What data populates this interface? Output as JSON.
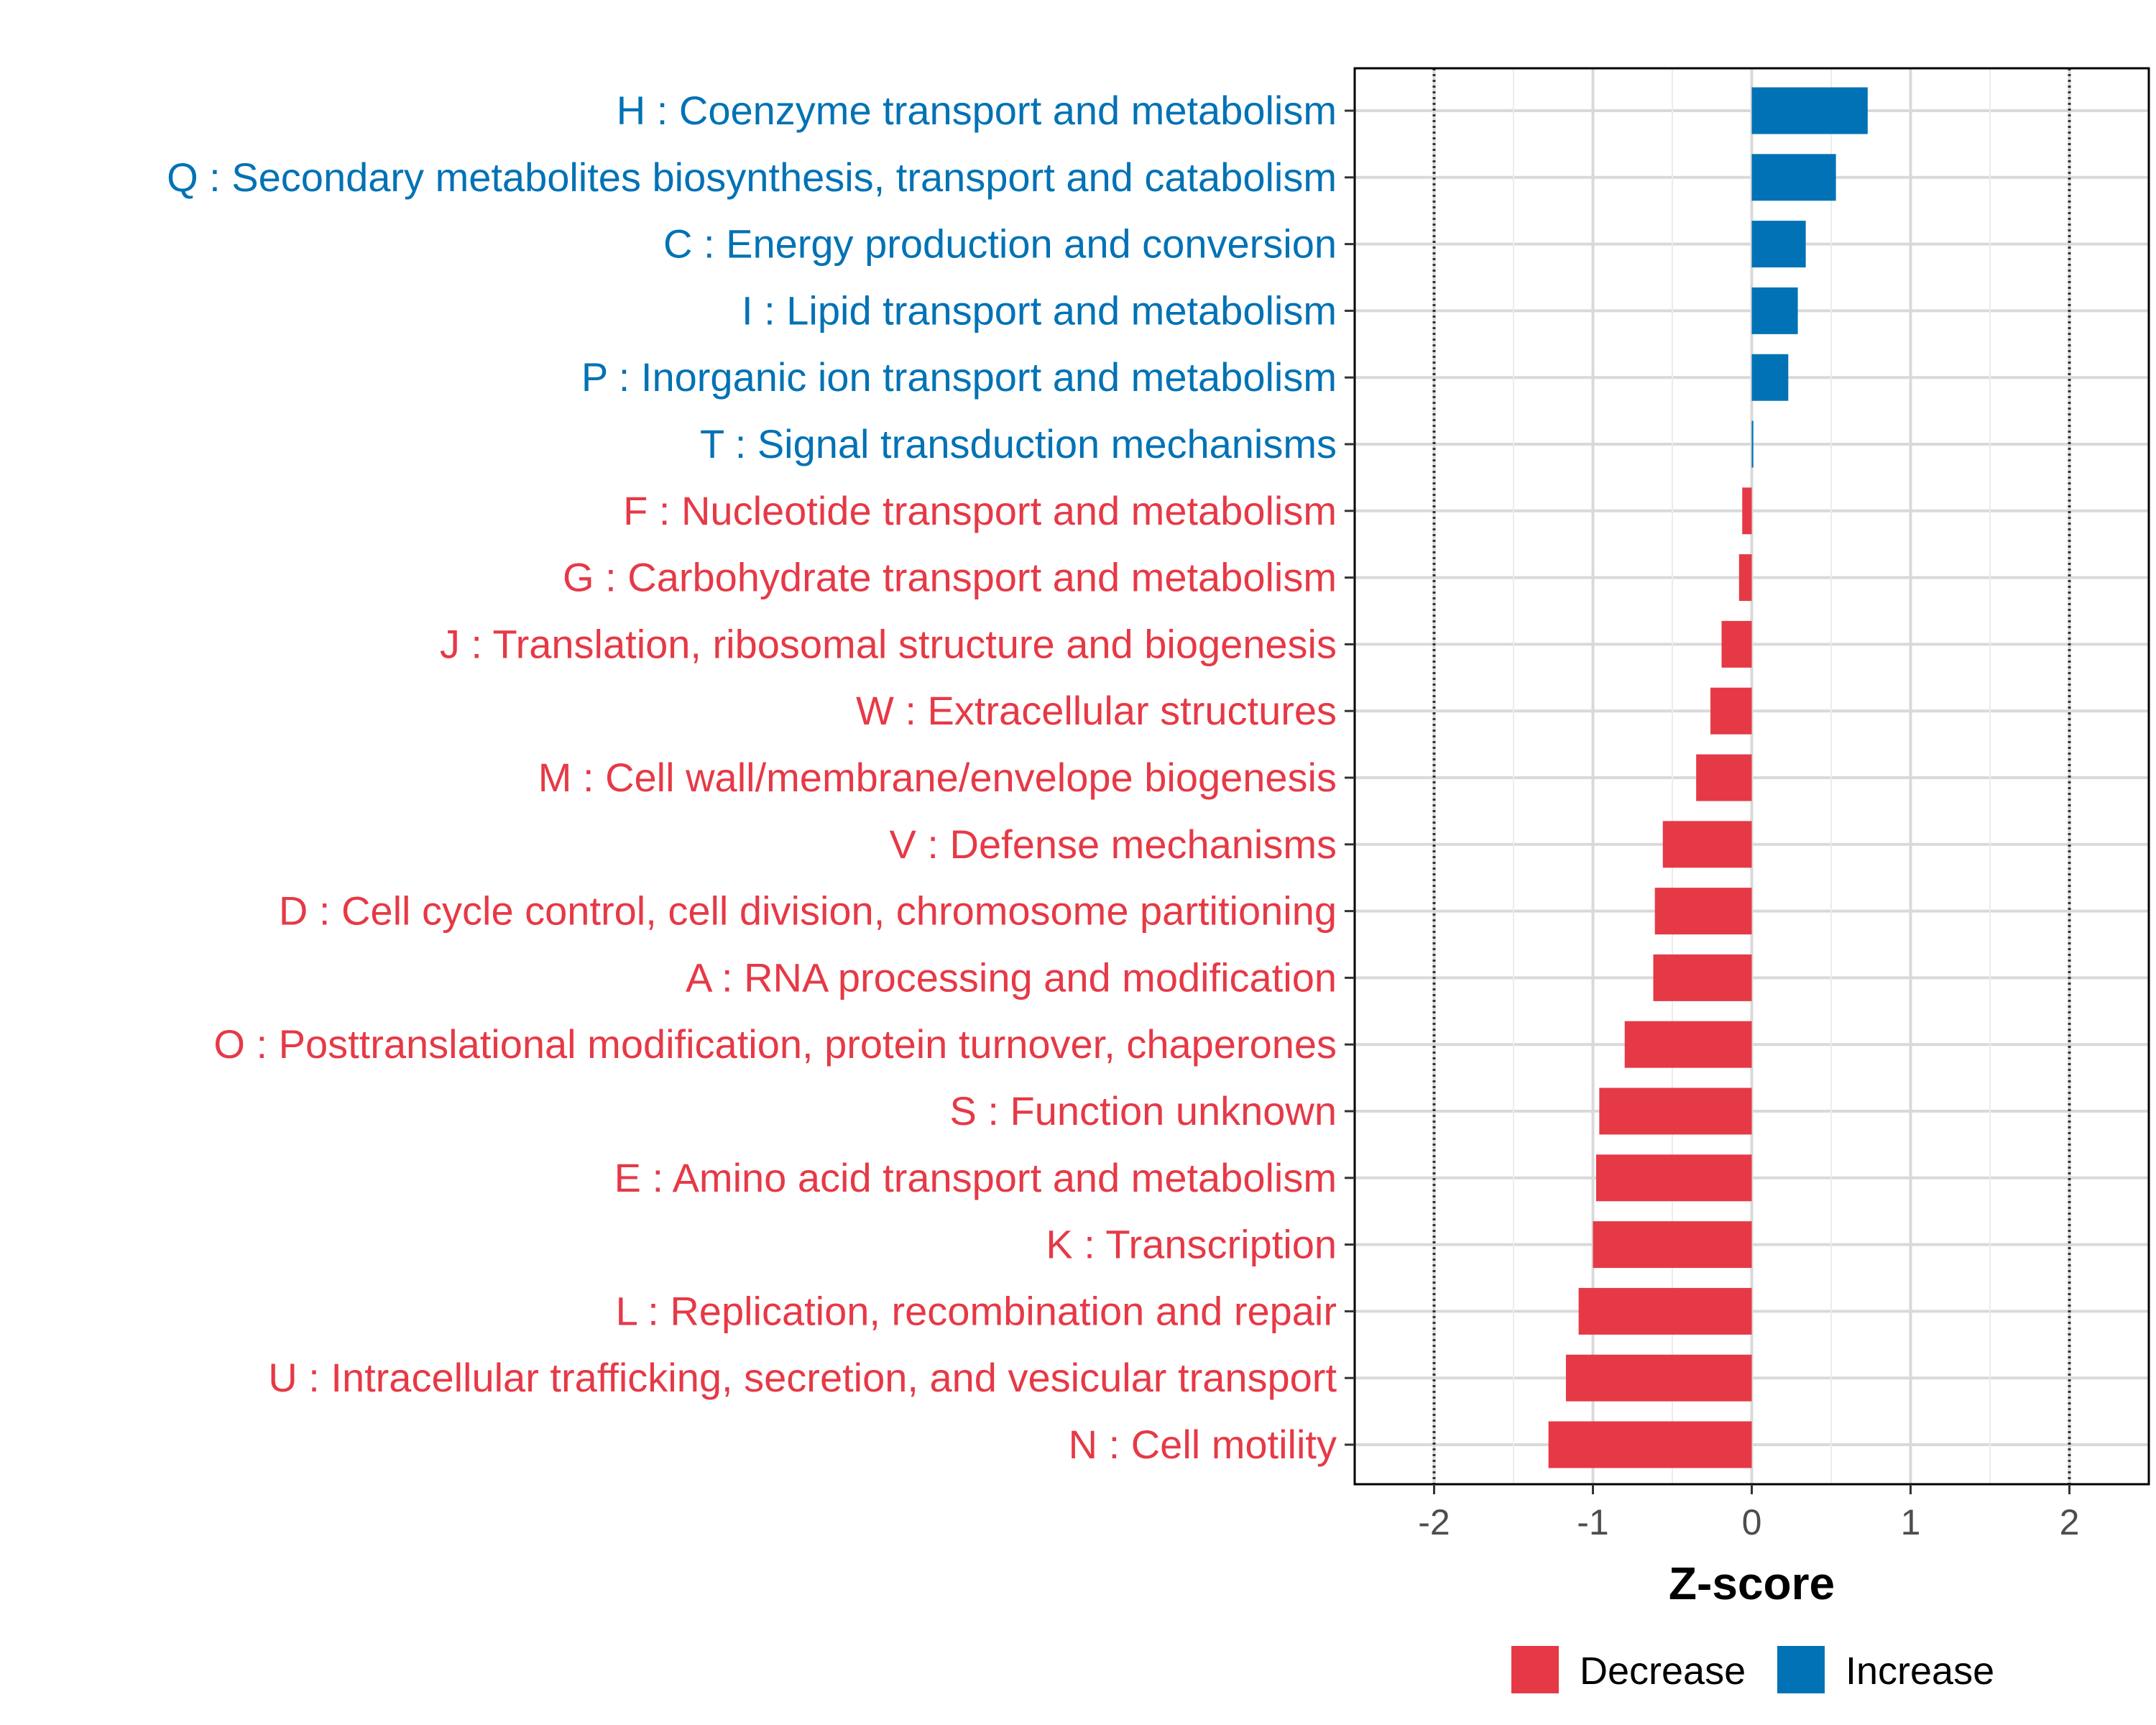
{
  "chart_data": {
    "type": "bar",
    "orientation": "horizontal",
    "xlabel": "Z-score",
    "xlim": [
      -2.5,
      2.5
    ],
    "xticks": [
      -2,
      -1,
      0,
      1,
      2
    ],
    "xtick_labels": [
      "-2",
      "-1",
      "0",
      "1",
      "2"
    ],
    "reference_lines": [
      -2,
      2
    ],
    "grid": true,
    "legend_position": "bottom",
    "colors": {
      "Increase": "#0072B5",
      "Decrease": "#E63946"
    },
    "categories": [
      "H : Coenzyme transport and metabolism",
      "Q : Secondary metabolites biosynthesis, transport and catabolism",
      "C : Energy production and conversion",
      "I : Lipid transport and metabolism",
      "P : Inorganic ion transport and metabolism",
      "T : Signal transduction mechanisms",
      "F : Nucleotide transport and metabolism",
      "G : Carbohydrate transport and metabolism",
      "J : Translation, ribosomal structure and biogenesis",
      "W : Extracellular structures",
      "M : Cell wall/membrane/envelope biogenesis",
      "V : Defense mechanisms",
      "D : Cell cycle control, cell division, chromosome partitioning",
      "A : RNA processing and modification",
      "O : Posttranslational modification, protein turnover, chaperones",
      "S : Function unknown",
      "E : Amino acid transport and metabolism",
      "K : Transcription",
      "L : Replication, recombination and repair",
      "U : Intracellular trafficking, secretion, and vesicular transport",
      "N : Cell motility"
    ],
    "values": [
      0.73,
      0.53,
      0.34,
      0.29,
      0.23,
      0.01,
      -0.06,
      -0.08,
      -0.19,
      -0.26,
      -0.35,
      -0.56,
      -0.61,
      -0.62,
      -0.8,
      -0.96,
      -0.98,
      -1.0,
      -1.09,
      -1.17,
      -1.28
    ],
    "groups": [
      "Increase",
      "Increase",
      "Increase",
      "Increase",
      "Increase",
      "Increase",
      "Decrease",
      "Decrease",
      "Decrease",
      "Decrease",
      "Decrease",
      "Decrease",
      "Decrease",
      "Decrease",
      "Decrease",
      "Decrease",
      "Decrease",
      "Decrease",
      "Decrease",
      "Decrease",
      "Decrease"
    ],
    "legend": [
      {
        "label": "Decrease",
        "color": "#E63946"
      },
      {
        "label": "Increase",
        "color": "#0072B5"
      }
    ]
  }
}
